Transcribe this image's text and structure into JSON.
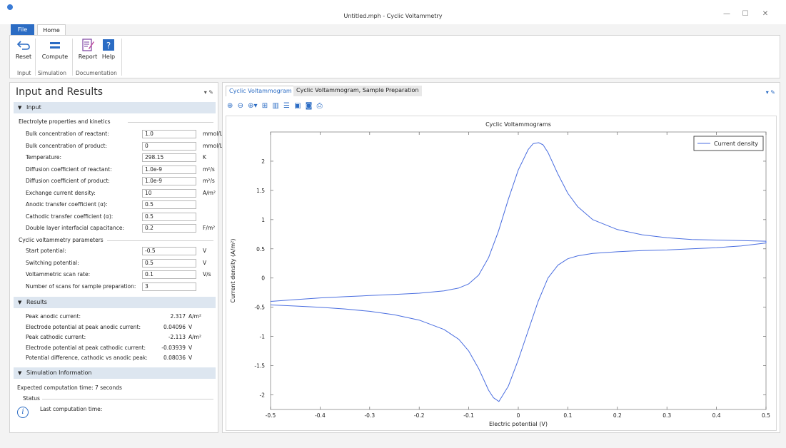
{
  "window": {
    "title": "Untitled.mph - Cyclic Voltammetry",
    "minimize": "—",
    "maximize": "☐",
    "close": "✕"
  },
  "ribbon": {
    "tabs": [
      "File",
      "Home"
    ],
    "buttons": {
      "reset": "Reset",
      "compute": "Compute",
      "report": "Report",
      "help": "Help"
    },
    "groups": [
      "Input",
      "Simulation",
      "Documentation"
    ]
  },
  "left_panel": {
    "title": "Input and Results",
    "input_section": "Input",
    "electrolyte_header": "Electrolyte properties and kinetics",
    "electrolyte_rows": [
      {
        "label": "Bulk concentration of reactant:",
        "value": "1.0",
        "unit": "mmol/L"
      },
      {
        "label": "Bulk concentration of product:",
        "value": "0",
        "unit": "mmol/L"
      },
      {
        "label": "Temperature:",
        "value": "298.15",
        "unit": "K"
      },
      {
        "label": "Diffusion coefficient of reactant:",
        "value": "1.0e-9",
        "unit": "m²/s"
      },
      {
        "label": "Diffusion coefficient of product:",
        "value": "1.0e-9",
        "unit": "m²/s"
      },
      {
        "label": "Exchange current density:",
        "value": "10",
        "unit": "A/m²"
      },
      {
        "label": "Anodic transfer coefficient (α):",
        "value": "0.5",
        "unit": ""
      },
      {
        "label": "Cathodic transfer coefficient (α):",
        "value": "0.5",
        "unit": ""
      },
      {
        "label": "Double layer interfacial capacitance:",
        "value": "0.2",
        "unit": "F/m²"
      }
    ],
    "cv_header": "Cyclic voltammetry parameters",
    "cv_rows": [
      {
        "label": "Start potential:",
        "value": "-0.5",
        "unit": "V"
      },
      {
        "label": "Switching potential:",
        "value": "0.5",
        "unit": "V"
      },
      {
        "label": "Voltammetric scan rate:",
        "value": "0.1",
        "unit": "V/s"
      },
      {
        "label": "Number of scans for sample preparation:",
        "value": "3",
        "unit": ""
      }
    ],
    "results_section": "Results",
    "results_rows": [
      {
        "label": "Peak anodic current:",
        "value": "2.317",
        "unit": "A/m²"
      },
      {
        "label": "Electrode potential at peak anodic current:",
        "value": "0.04096",
        "unit": "V"
      },
      {
        "label": "Peak cathodic current:",
        "value": "-2.113",
        "unit": "A/m²"
      },
      {
        "label": "Electrode potential at peak cathodic current:",
        "value": "-0.03939",
        "unit": "V"
      },
      {
        "label": "Potential difference, cathodic vs anodic peak:",
        "value": "0.08036",
        "unit": "V"
      }
    ],
    "sim_section": "Simulation Information",
    "expected_time": "Expected computation time:  7 seconds",
    "status_header": "Status",
    "last_time": "Last computation time:"
  },
  "right_panel": {
    "tabs": [
      "Cyclic Voltammogram",
      "Cyclic Voltammogram, Sample Preparation"
    ]
  },
  "chart_data": {
    "type": "line",
    "title": "Cyclic Voltammograms",
    "xlabel": "Electric potential (V)",
    "ylabel": "Current density (A/m²)",
    "xlim": [
      -0.5,
      0.5
    ],
    "ylim": [
      -2.25,
      2.5
    ],
    "xticks": [
      -0.5,
      -0.4,
      -0.3,
      -0.2,
      -0.1,
      0,
      0.1,
      0.2,
      0.3,
      0.4,
      0.5
    ],
    "yticks": [
      -2,
      -1.5,
      -1,
      -0.5,
      0,
      0.5,
      1,
      1.5,
      2
    ],
    "legend": "top-right",
    "line_color": "#4a6ee0",
    "series": [
      {
        "name": "Current density",
        "x": [
          -0.5,
          -0.45,
          -0.4,
          -0.35,
          -0.3,
          -0.25,
          -0.2,
          -0.15,
          -0.12,
          -0.1,
          -0.08,
          -0.06,
          -0.04,
          -0.02,
          0.0,
          0.02,
          0.03,
          0.041,
          0.05,
          0.06,
          0.08,
          0.1,
          0.12,
          0.15,
          0.2,
          0.25,
          0.3,
          0.35,
          0.4,
          0.45,
          0.5,
          0.5,
          0.45,
          0.4,
          0.35,
          0.3,
          0.25,
          0.2,
          0.15,
          0.12,
          0.1,
          0.08,
          0.06,
          0.04,
          0.02,
          0.0,
          -0.02,
          -0.039,
          -0.05,
          -0.06,
          -0.08,
          -0.1,
          -0.12,
          -0.15,
          -0.2,
          -0.25,
          -0.3,
          -0.35,
          -0.4,
          -0.45,
          -0.5
        ],
        "y": [
          -0.4,
          -0.37,
          -0.34,
          -0.32,
          -0.3,
          -0.28,
          -0.26,
          -0.22,
          -0.17,
          -0.1,
          0.05,
          0.35,
          0.8,
          1.35,
          1.85,
          2.2,
          2.3,
          2.317,
          2.28,
          2.15,
          1.78,
          1.45,
          1.22,
          1.0,
          0.83,
          0.74,
          0.69,
          0.66,
          0.65,
          0.64,
          0.63,
          0.6,
          0.55,
          0.52,
          0.5,
          0.48,
          0.47,
          0.45,
          0.42,
          0.38,
          0.33,
          0.22,
          0.0,
          -0.4,
          -0.9,
          -1.4,
          -1.85,
          -2.113,
          -2.05,
          -1.92,
          -1.55,
          -1.25,
          -1.05,
          -0.88,
          -0.72,
          -0.63,
          -0.57,
          -0.53,
          -0.5,
          -0.48,
          -0.46
        ]
      }
    ]
  }
}
